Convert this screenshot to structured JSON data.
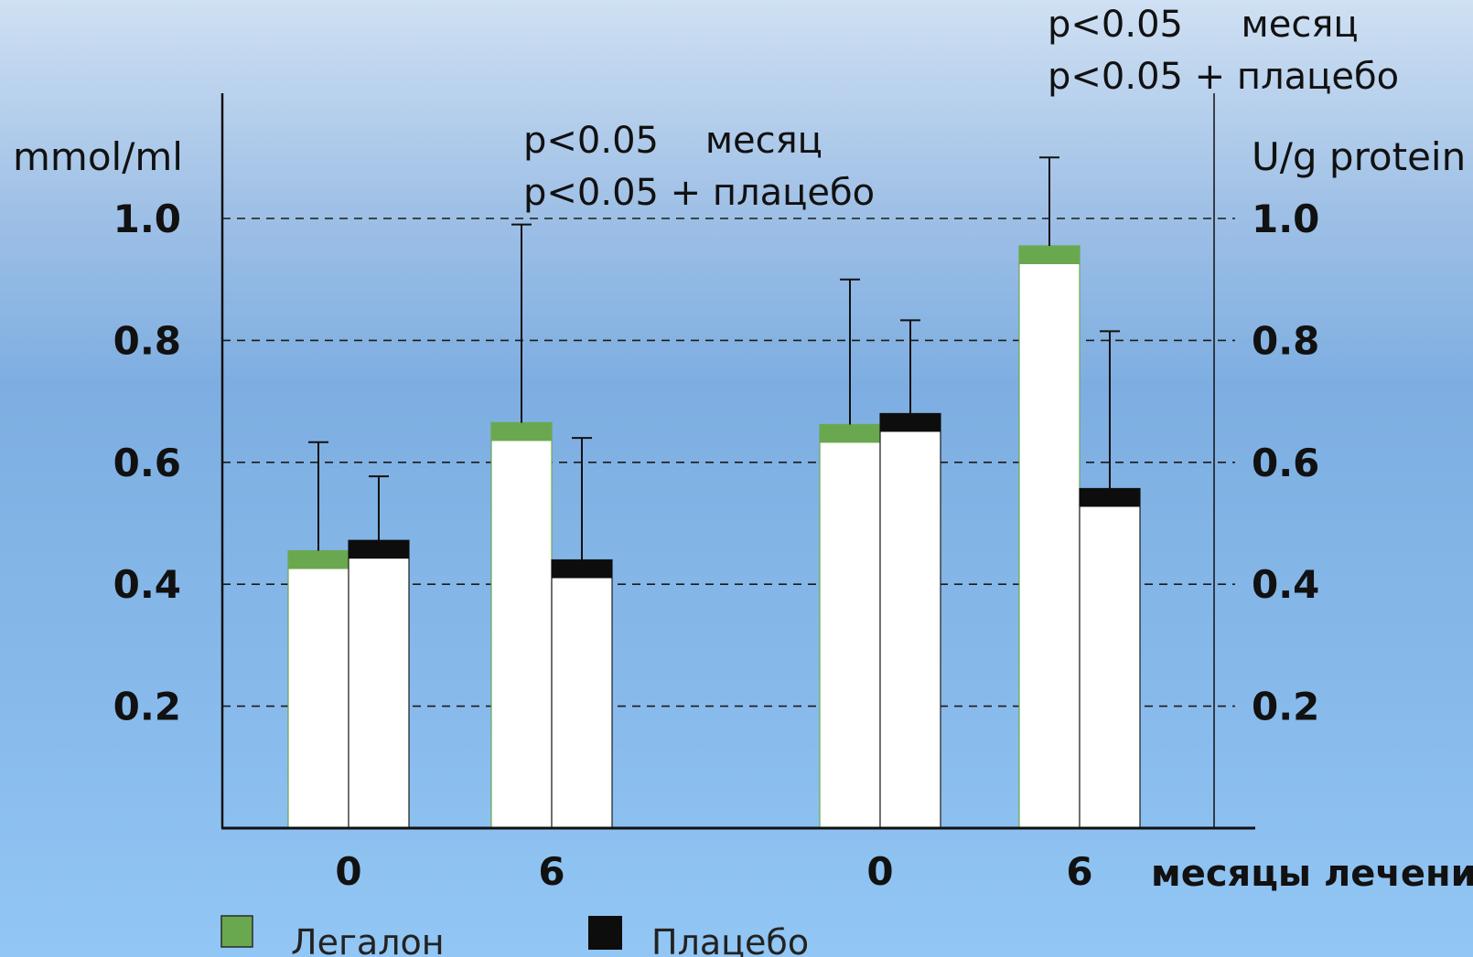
{
  "chart_data": {
    "type": "bar",
    "left_unit": "mmol/ml",
    "right_unit": "U/g protein",
    "y_ticks": [
      "1.0",
      "0.8",
      "0.6",
      "0.4",
      "0.2"
    ],
    "ylim": [
      0,
      1.2
    ],
    "grid": "dashed horizontal",
    "x_axis_label": "месяцы лечения",
    "groups": [
      {
        "axis": "left",
        "bars": [
          {
            "label": "0",
            "legalon": 0.455,
            "placebo": 0.472,
            "legalon_err_top": 0.633,
            "placebo_err_top": 0.577
          },
          {
            "label": "6",
            "legalon": 0.665,
            "placebo": 0.44,
            "legalon_err_top": 0.99,
            "placebo_err_top": 0.64
          }
        ],
        "annotation": [
          "p<0.05    месяц",
          "p<0.05 + плацебо"
        ]
      },
      {
        "axis": "right",
        "bars": [
          {
            "label": "0",
            "legalon": 0.662,
            "placebo": 0.68,
            "legalon_err_top": 0.9,
            "placebo_err_top": 0.833
          },
          {
            "label": "6",
            "legalon": 0.955,
            "placebo": 0.557,
            "legalon_err_top": 1.1,
            "placebo_err_top": 0.815
          }
        ],
        "annotation": [
          "p<0.05     месяц",
          "p<0.05 + плацебо"
        ]
      }
    ],
    "series": [
      {
        "name": "Легалон",
        "color": "#6aa84f"
      },
      {
        "name": "Плацебо",
        "color": "#0d0d0d"
      }
    ]
  }
}
